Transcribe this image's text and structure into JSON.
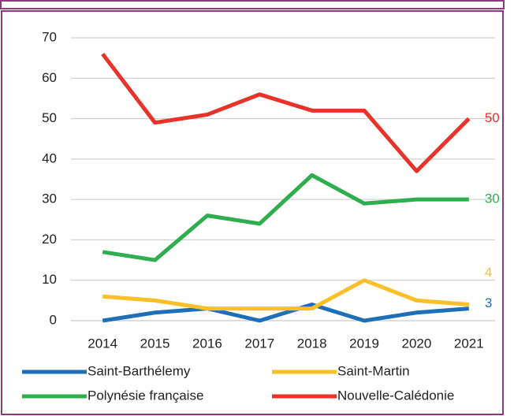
{
  "chart_data": {
    "type": "line",
    "categories": [
      "2014",
      "2015",
      "2016",
      "2017",
      "2018",
      "2019",
      "2020",
      "2021"
    ],
    "series": [
      {
        "name": "Saint-Barthélemy",
        "color": "#1f6fb8",
        "values": [
          0,
          2,
          3,
          0,
          4,
          0,
          2,
          3
        ]
      },
      {
        "name": "Saint-Martin",
        "color": "#fbbf2a",
        "values": [
          6,
          5,
          3,
          3,
          3,
          10,
          5,
          4
        ]
      },
      {
        "name": "Polynésie française",
        "color": "#2eae4e",
        "values": [
          17,
          15,
          26,
          24,
          36,
          29,
          30,
          30
        ]
      },
      {
        "name": "Nouvelle-Calédonie",
        "color": "#e8332a",
        "values": [
          66,
          49,
          51,
          56,
          52,
          52,
          37,
          50
        ]
      }
    ],
    "ylim": [
      0,
      70
    ],
    "yticks": [
      0,
      10,
      20,
      30,
      40,
      50,
      60,
      70
    ],
    "grid": true,
    "legend": "bottom"
  }
}
